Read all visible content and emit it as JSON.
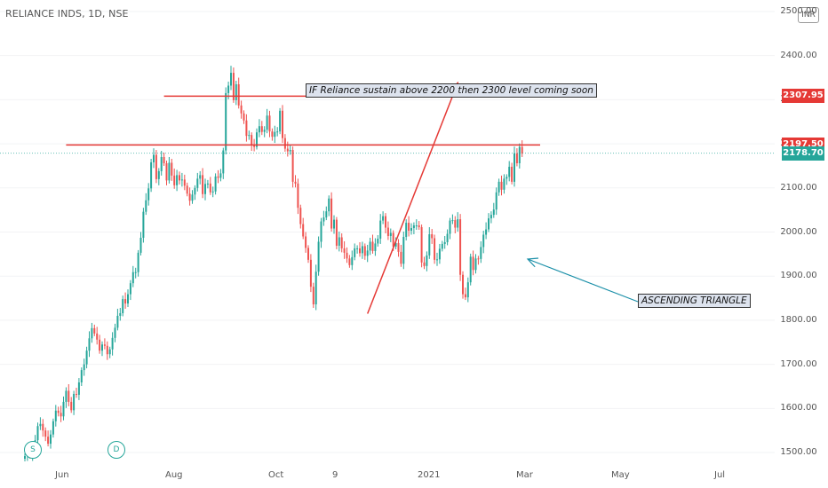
{
  "header": {
    "symbol": "RELIANCE INDS, 1D, NSE",
    "currency": "INR"
  },
  "colors": {
    "up": "#26a69a",
    "down": "#ef5350",
    "annotation_line": "#e53935",
    "arrow": "#1a8fa8",
    "last_price": "#26a69a",
    "level_tag": "#e53935",
    "note_bg": "#dde3ee"
  },
  "chart_data": {
    "type": "candlestick",
    "y_ticks": [
      "2500.00",
      "2400.00",
      "2300.00",
      "2200.00",
      "2100.00",
      "2000.00",
      "1900.00",
      "1800.00",
      "1700.00",
      "1600.00",
      "1500.00"
    ],
    "x_ticks": [
      "Jun",
      "Aug",
      "Oct",
      "9",
      "2021",
      "Mar",
      "May",
      "Jul"
    ],
    "ylim": [
      1480,
      2510
    ],
    "price_tags": [
      {
        "label": "2307.95",
        "value": 2307.95,
        "kind": "level"
      },
      {
        "label": "2197.50",
        "value": 2197.5,
        "kind": "level"
      },
      {
        "label": "2178.70",
        "value": 2178.7,
        "kind": "last"
      }
    ],
    "horizontal_lines": [
      {
        "value": 2307.95,
        "from_bar": 54,
        "to_bar": 200
      },
      {
        "value": 2197.5,
        "from_bar": 16,
        "to_bar": 200
      }
    ],
    "last_price": 2178.7,
    "trend_line": {
      "from": {
        "bar": 133,
        "value": 1815
      },
      "to": {
        "bar": 168,
        "value": 2338
      }
    },
    "annotations": [
      {
        "text": "IF Reliance sustain above 2200 then 2300 level coming soon"
      },
      {
        "text": "ASCENDING TRIANGLE"
      }
    ],
    "events": [
      "S",
      "D"
    ],
    "close": [
      1492,
      1500,
      1493,
      1508,
      1528,
      1560,
      1565,
      1550,
      1536,
      1520,
      1541,
      1571,
      1595,
      1590,
      1582,
      1615,
      1640,
      1615,
      1596,
      1633,
      1631,
      1659,
      1687,
      1700,
      1731,
      1759,
      1782,
      1770,
      1756,
      1731,
      1745,
      1742,
      1723,
      1734,
      1760,
      1783,
      1810,
      1816,
      1848,
      1838,
      1859,
      1884,
      1909,
      1909,
      1953,
      1987,
      2046,
      2072,
      2099,
      2158,
      2175,
      2120,
      2138,
      2170,
      2156,
      2117,
      2157,
      2128,
      2106,
      2129,
      2117,
      2119,
      2105,
      2087,
      2071,
      2085,
      2100,
      2121,
      2129,
      2086,
      2109,
      2110,
      2090,
      2092,
      2126,
      2123,
      2133,
      2185,
      2315,
      2332,
      2361,
      2299,
      2335,
      2287,
      2269,
      2253,
      2218,
      2220,
      2198,
      2193,
      2226,
      2240,
      2227,
      2232,
      2264,
      2228,
      2216,
      2227,
      2228,
      2275,
      2213,
      2189,
      2183,
      2186,
      2114,
      2110,
      2055,
      2018,
      1990,
      1964,
      1937,
      1876,
      1836,
      1910,
      1978,
      2024,
      2033,
      2047,
      2076,
      2008,
      2028,
      1969,
      1988,
      1963,
      1953,
      1940,
      1925,
      1943,
      1963,
      1963,
      1952,
      1968,
      1946,
      1958,
      1978,
      1957,
      1974,
      1985,
      2026,
      2036,
      2010,
      1991,
      1998,
      1967,
      1975,
      1955,
      1928,
      1989,
      2021,
      2003,
      2009,
      2015,
      2015,
      2011,
      1931,
      1923,
      1947,
      1995,
      1986,
      1937,
      1938,
      1962,
      1973,
      1977,
      1996,
      2026,
      2027,
      2010,
      2029,
      1903,
      1859,
      1852,
      1886,
      1944,
      1914,
      1940,
      1939,
      1966,
      1994,
      2006,
      2031,
      2039,
      2051,
      2090,
      2114,
      2096,
      2121,
      2125,
      2148,
      2114,
      2178,
      2156,
      2193,
      2178
    ]
  }
}
